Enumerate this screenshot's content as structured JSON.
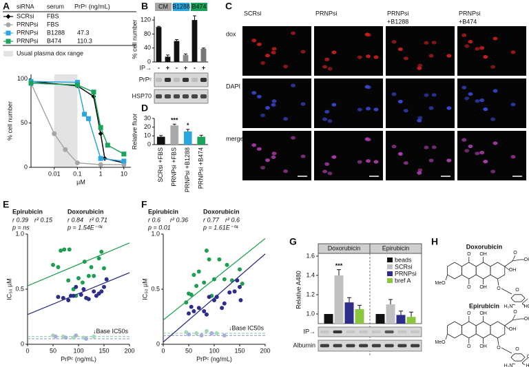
{
  "chart_data": [
    {
      "type": "line",
      "panel": "A",
      "legend_header": [
        "siRNA",
        "serum",
        "PrPᶜ (ng/mL)"
      ],
      "series": [
        {
          "name": "SCRsi",
          "serum": "FBS",
          "marker": "diamond",
          "color": "#000000",
          "x": [
            0.001,
            0.1,
            0.5,
            1,
            1.5,
            10
          ],
          "values": [
            97,
            92,
            80,
            38,
            10,
            5
          ]
        },
        {
          "name": "PRNPsi",
          "serum": "FBS",
          "marker": "circle",
          "color": "#a6a6a6",
          "x": [
            0.001,
            0.01,
            0.03,
            0.1,
            1,
            10
          ],
          "values": [
            95,
            38,
            20,
            5,
            3,
            3
          ]
        },
        {
          "name": "PRNPsi",
          "serum": "B1288",
          "prpc": 47.3,
          "marker": "square",
          "color": "#2aa6e0",
          "x": [
            0.001,
            0.1,
            0.2,
            0.3,
            1,
            10
          ],
          "values": [
            97,
            96,
            60,
            55,
            10,
            7
          ]
        },
        {
          "name": "PRNPsi",
          "serum": "B474",
          "prpc": 110.3,
          "marker": "square",
          "color": "#1aa35a",
          "x": [
            0.001,
            0.1,
            0.5,
            1,
            2,
            10
          ],
          "values": [
            95,
            93,
            85,
            45,
            25,
            15
          ]
        }
      ],
      "shaded_range": {
        "label": "Usual plasma dox range",
        "x": [
          0.01,
          0.1
        ],
        "color": "#e3e3e3"
      },
      "x_label": "µM",
      "y_label": "% cell number",
      "xscale": "log",
      "xlim": [
        0.001,
        20
      ],
      "xticks": [
        0.01,
        0.1,
        1,
        10
      ],
      "ylim": [
        0,
        105
      ],
      "yticks": [
        0,
        50,
        100
      ]
    },
    {
      "type": "bar",
      "panel": "B",
      "groups": [
        {
          "label": "CM",
          "color": "#a6a6a6"
        },
        {
          "label": "B1288",
          "color": "#2aa6e0"
        },
        {
          "label": "B474",
          "color": "#1aa35a"
        }
      ],
      "categories": [
        "-",
        "+",
        "-",
        "+",
        "-",
        "+"
      ],
      "category_label": "IP→",
      "values": [
        100,
        15,
        60,
        20,
        120,
        38
      ],
      "errors": [
        2,
        5,
        4,
        3,
        12,
        2
      ],
      "colors": [
        "#111111",
        "#111111",
        "#111111",
        "#8a8a8a",
        "#111111",
        "#777777"
      ],
      "y_label": "% cell number",
      "ylim": [
        0,
        130
      ],
      "yticks": [
        0,
        40,
        80,
        120
      ],
      "blots": [
        "PrPᶜ",
        "HSP70"
      ]
    },
    {
      "type": "bar",
      "panel": "D",
      "categories": [
        "SCRsi +FBS",
        "PRNPsi +FBS",
        "PRNPsi +B1288",
        "PRNPsi +B474"
      ],
      "values": [
        9,
        22,
        15,
        9
      ],
      "errors": [
        1.5,
        1.5,
        2.5,
        1.8
      ],
      "colors": [
        "#111111",
        "#aaaaaa",
        "#2aa6e0",
        "#1aa35a"
      ],
      "significance": [
        null,
        "***",
        "*",
        null
      ],
      "y_label": "Relative fluor",
      "ylim": [
        0,
        30
      ],
      "yticks": [
        0,
        10,
        20,
        30
      ]
    },
    {
      "type": "scatter",
      "panel": "E",
      "series": [
        {
          "name": "Epirubicin",
          "color": "#1e9e50",
          "stats": [
            "r 0.39",
            "r² 0.15",
            "p = ns"
          ],
          "x": [
            50,
            60,
            65,
            72,
            80,
            82,
            90,
            95,
            100,
            108,
            112,
            120,
            125,
            130,
            140,
            145,
            150
          ],
          "values": [
            0.72,
            0.7,
            0.85,
            0.86,
            0.58,
            0.86,
            0.5,
            0.44,
            0.6,
            0.56,
            0.75,
            0.62,
            0.7,
            0.62,
            0.78,
            0.84,
            0.69
          ],
          "fit": {
            "x": [
              0,
              200
            ],
            "values": [
              0.53,
              0.92
            ]
          }
        },
        {
          "name": "Doxorubicin",
          "color": "#2e2e8a",
          "stats": [
            "r 0.84",
            "r² 0.71",
            "p = 1.54E⁻⁰⁴"
          ],
          "x": [
            60,
            70,
            80,
            85,
            90,
            95,
            105,
            110,
            115,
            120,
            130,
            135,
            140,
            145,
            150,
            155
          ],
          "values": [
            0.43,
            0.42,
            0.4,
            0.44,
            0.44,
            0.52,
            0.45,
            0.5,
            0.42,
            0.41,
            0.48,
            0.44,
            0.46,
            0.48,
            0.52,
            0.59
          ],
          "fit": {
            "x": [
              0,
              200
            ],
            "values": [
              0.27,
              0.65
            ]
          }
        },
        {
          "color": "#a8d8b8",
          "x": [
            50,
            70,
            90,
            110,
            130
          ],
          "values": [
            0.08,
            0.07,
            0.06,
            0.06,
            0.07
          ]
        },
        {
          "color": "#a8b0d8",
          "x": [
            55,
            75,
            95,
            115
          ],
          "values": [
            0.07,
            0.06,
            0.08,
            0.05
          ]
        }
      ],
      "baselines": [
        {
          "value": 0.07,
          "color": "#7fc89a"
        },
        {
          "value": 0.05,
          "color": "#8a90c8"
        }
      ],
      "baseline_label": "↓Base IC50s",
      "x_label": "PrPᶜ (ng/mL)",
      "y_label": "IC₅₀ µM",
      "xlim": [
        0,
        200
      ],
      "xticks": [
        0,
        50,
        100,
        150,
        200
      ],
      "ylim": [
        0,
        1
      ],
      "yticks": [
        0,
        0.5,
        {
          "value": 1,
          "label": "1.0"
        }
      ]
    },
    {
      "type": "scatter",
      "panel": "F",
      "series": [
        {
          "name": "Epirubicin",
          "color": "#1e9e50",
          "stats": [
            "r 0.6",
            "r² 0.36",
            "p = 0.01"
          ],
          "x": [
            45,
            50,
            55,
            60,
            65,
            70,
            80,
            85,
            90,
            95,
            100,
            105,
            110,
            120,
            125,
            135,
            150,
            155
          ],
          "values": [
            0.38,
            0.46,
            0.45,
            0.63,
            0.53,
            0.66,
            0.56,
            0.85,
            0.77,
            0.44,
            0.59,
            0.43,
            0.77,
            0.59,
            0.72,
            0.58,
            0.68,
            0.55
          ],
          "fit": {
            "x": [
              0,
              200
            ],
            "values": [
              0.22,
              0.96
            ]
          }
        },
        {
          "name": "Doxorubicin",
          "color": "#2e2e8a",
          "stats": [
            "r 0.77",
            "r² 0.6",
            "p = 1.61E⁻⁰⁴"
          ],
          "x": [
            50,
            55,
            60,
            70,
            80,
            85,
            90,
            100,
            105,
            115,
            120,
            130,
            140,
            145,
            150,
            152
          ],
          "values": [
            0.28,
            0.34,
            0.3,
            0.33,
            0.3,
            0.27,
            0.43,
            0.4,
            0.43,
            0.33,
            0.37,
            0.47,
            0.48,
            0.58,
            0.52,
            0.4
          ],
          "fit": {
            "x": [
              0,
              200
            ],
            "values": [
              0.02,
              0.82
            ]
          }
        },
        {
          "color": "#a8d8b8",
          "x": [
            45,
            65,
            85,
            105
          ],
          "values": [
            0.11,
            0.1,
            0.12,
            0.1
          ]
        },
        {
          "color": "#a8b0d8",
          "x": [
            50,
            75,
            95,
            120
          ],
          "values": [
            0.09,
            0.08,
            0.1,
            0.08
          ]
        }
      ],
      "baselines": [
        {
          "value": 0.1,
          "color": "#7fc89a"
        },
        {
          "value": 0.08,
          "color": "#8a90c8"
        }
      ],
      "baseline_label": "↓Base IC50s",
      "x_label": "PrPᶜ (ng/mL)",
      "y_label": "IC₅₀ µM",
      "xlim": [
        0,
        200
      ],
      "xticks": [
        0,
        50,
        100,
        150,
        200
      ],
      "ylim": [
        0,
        1
      ],
      "yticks": [
        0,
        0.5,
        {
          "value": 1,
          "label": "1.0"
        }
      ]
    },
    {
      "type": "bar",
      "panel": "G",
      "categories": [
        "Doxorubicin",
        "Epirubicin"
      ],
      "series": [
        {
          "name": "beads",
          "color": "#111111",
          "values": [
            1.0,
            1.0
          ]
        },
        {
          "name": "SCRsi",
          "color": "#c0c0c0",
          "values": [
            1.4,
            1.1
          ],
          "errors": [
            0.06,
            0.05
          ],
          "significance": [
            "***",
            null
          ]
        },
        {
          "name": "PRNPsi",
          "color": "#2e2e8a",
          "values": [
            1.12,
            0.99
          ],
          "errors": [
            0.05,
            0.04
          ]
        },
        {
          "name": "bref A",
          "color": "#8cc63f",
          "values": [
            1.05,
            0.97
          ],
          "errors": [
            0.04,
            0.05
          ]
        }
      ],
      "y_label": "Relative A480",
      "ylim": [
        0.9,
        1.6
      ],
      "yticks": [
        {
          "value": 1,
          "label": "1.0"
        },
        1.2,
        1.4,
        1.6
      ],
      "category_label": "IP→",
      "blots": [
        "Albumin"
      ]
    }
  ],
  "micrographs": {
    "panel": "C",
    "columns": [
      [
        "SCRsi"
      ],
      [
        "PRNPsi"
      ],
      [
        "PRNPsi",
        "+B1288"
      ],
      [
        "PRNPsi",
        "+B474"
      ]
    ],
    "rows": [
      {
        "label": "dox",
        "color": "#d02020"
      },
      {
        "label": "DAPI",
        "color": "#3a4ad8"
      },
      {
        "label": "merge",
        "color": "#b040b0"
      }
    ]
  },
  "structures": {
    "panel": "H",
    "molecules": [
      {
        "name": "Doxorubicin",
        "atoms": [
          {
            "label": "O"
          },
          {
            "label": "O"
          },
          {
            "label": "OH"
          },
          {
            "label": "OH"
          },
          {
            "label": "MeO"
          },
          {
            "label": "O"
          },
          {
            "label": "OH"
          },
          {
            "label": "OH"
          },
          {
            "label": "O"
          },
          {
            "label": "O"
          },
          {
            "label": "H₂N"
          },
          {
            "label": "HO",
            "color": "#e0201a"
          },
          {
            "label": "H",
            "color": "#999999"
          }
        ]
      },
      {
        "name": "Epirubicin",
        "atoms": [
          {
            "label": "O"
          },
          {
            "label": "O"
          },
          {
            "label": "OH"
          },
          {
            "label": "OH"
          },
          {
            "label": "MeO"
          },
          {
            "label": "O"
          },
          {
            "label": "OH"
          },
          {
            "label": "OH"
          },
          {
            "label": "O"
          },
          {
            "label": "O"
          },
          {
            "label": "H₂N"
          },
          {
            "label": "H",
            "color": "#999999"
          },
          {
            "label": "OH",
            "color": "#e0201a"
          }
        ]
      }
    ]
  }
}
